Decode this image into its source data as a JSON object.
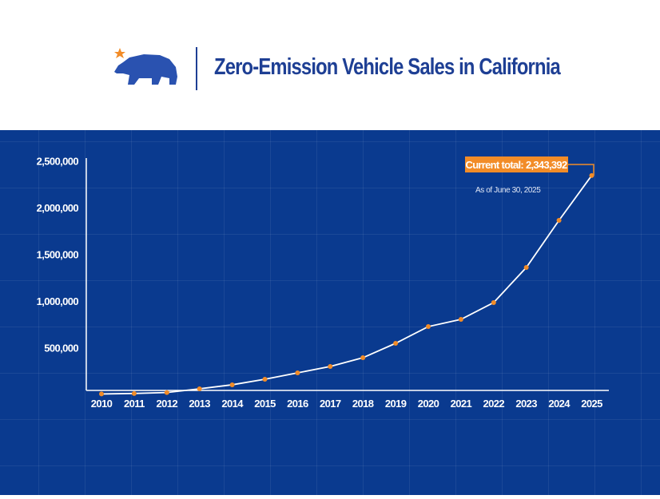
{
  "header": {
    "title": "Zero-Emission Vehicle Sales in California",
    "logo": "california-bear-star-logo"
  },
  "colors": {
    "background": "#0a3a8f",
    "line": "#ffffff",
    "marker": "#f28c28",
    "callout": "#f28c28",
    "title": "#1e3f94"
  },
  "chart_data": {
    "type": "line",
    "title": "Zero-Emission Vehicle Sales in California",
    "xlabel": "",
    "ylabel": "",
    "categories": [
      "2010",
      "2011",
      "2012",
      "2013",
      "2014",
      "2015",
      "2016",
      "2017",
      "2018",
      "2019",
      "2020",
      "2021",
      "2022",
      "2023",
      "2024",
      "2025"
    ],
    "values": [
      5000,
      10000,
      20000,
      60000,
      103000,
      162000,
      231000,
      299000,
      393000,
      547000,
      726000,
      803000,
      983000,
      1359000,
      1863000,
      2343392
    ],
    "ylim": [
      0,
      2500000
    ],
    "yticks": [
      500000,
      1000000,
      1500000,
      2000000,
      2500000
    ],
    "ytick_labels": [
      "500,000",
      "1,000,000",
      "1,500,000",
      "2,000,000",
      "2,500,000"
    ],
    "grid": true,
    "annotation": {
      "label": "Current total: 2,343,392",
      "note": "As of June 30, 2025"
    }
  }
}
